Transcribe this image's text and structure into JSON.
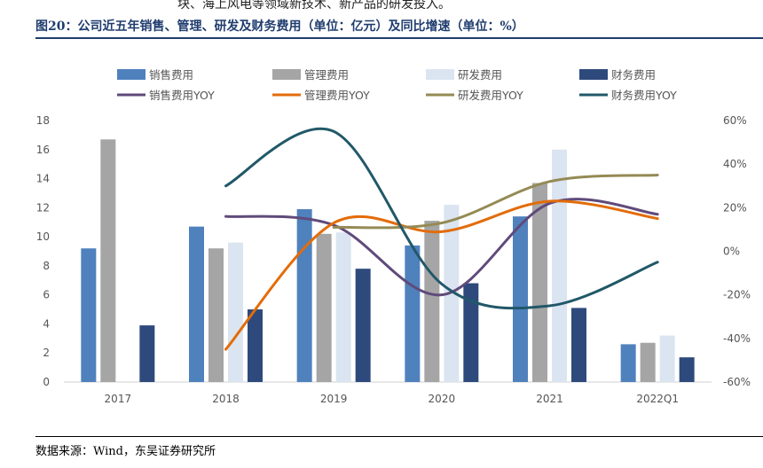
{
  "page": {
    "top_cut_text": "块、海上风电等领域新技术、新产品的研发投入。",
    "figure_title": "图20：公司近五年销售、管理、研发及财务费用（单位：亿元）及同比增速（单位：%）",
    "source": "数据来源：Wind，东吴证券研究所"
  },
  "chart_data": {
    "type": "bar",
    "categories": [
      "2017",
      "2018",
      "2019",
      "2020",
      "2021",
      "2022Q1"
    ],
    "series": [
      {
        "name": "销售费用",
        "kind": "bar",
        "color": "#4f81bd",
        "values": [
          9.2,
          10.7,
          11.9,
          9.4,
          11.4,
          2.6
        ]
      },
      {
        "name": "管理费用",
        "kind": "bar",
        "color": "#a5a5a5",
        "values": [
          16.7,
          9.2,
          10.2,
          11.1,
          13.7,
          2.7
        ]
      },
      {
        "name": "研发费用",
        "kind": "bar",
        "color": "#dbe5f1",
        "values": [
          null,
          9.6,
          10.3,
          12.2,
          16.0,
          3.2
        ]
      },
      {
        "name": "财务费用",
        "kind": "bar",
        "color": "#2e4a7d",
        "values": [
          3.9,
          5.0,
          7.8,
          6.8,
          5.1,
          1.7
        ]
      }
    ],
    "yoy_series": [
      {
        "name": "销售费用YOY",
        "color": "#604a7b",
        "values": [
          null,
          16,
          12,
          -20,
          22,
          17
        ]
      },
      {
        "name": "管理费用YOY",
        "color": "#e36c0a",
        "values": [
          null,
          -45,
          13,
          9,
          23,
          15
        ]
      },
      {
        "name": "研发费用YOY",
        "color": "#948a54",
        "values": [
          null,
          null,
          11,
          13,
          32,
          35
        ]
      },
      {
        "name": "财务费用YOY",
        "color": "#215868",
        "values": [
          null,
          30,
          55,
          -15,
          -25,
          -5
        ]
      }
    ],
    "y_left": {
      "min": 0,
      "max": 18,
      "step": 2,
      "ticks": [
        "0",
        "2",
        "4",
        "6",
        "8",
        "10",
        "12",
        "14",
        "16",
        "18"
      ]
    },
    "y_right": {
      "min": -60,
      "max": 60,
      "step": 20,
      "ticks": [
        "-60%",
        "-40%",
        "-20%",
        "0%",
        "20%",
        "40%",
        "60%"
      ]
    },
    "legend_position": "top"
  }
}
